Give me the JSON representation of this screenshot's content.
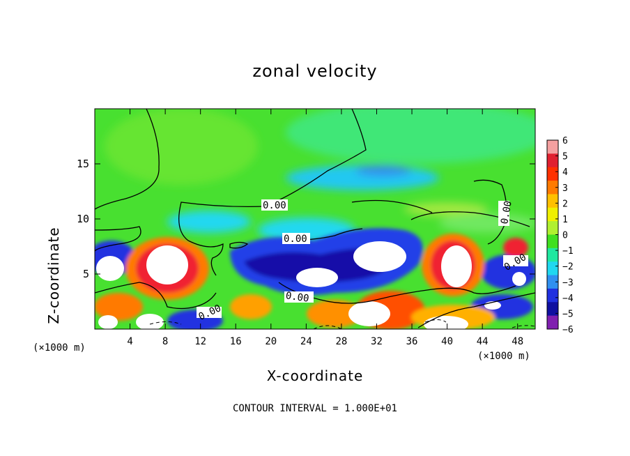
{
  "chart_data": {
    "type": "heatmap",
    "title": "zonal velocity",
    "xlabel": "X-coordinate",
    "ylabel": "Z-coordinate",
    "x_unit": "(×1000 m)",
    "y_unit": "(×1000 m)",
    "x_ticks": [
      "4",
      "8",
      "12",
      "16",
      "20",
      "24",
      "28",
      "32",
      "36",
      "40",
      "44",
      "48"
    ],
    "y_ticks": [
      "5",
      "10",
      "15"
    ],
    "xlim": [
      0,
      50
    ],
    "ylim": [
      0,
      20
    ],
    "colorbar": {
      "ticks": [
        "6",
        "5",
        "4",
        "3",
        "2",
        "1",
        "0",
        "−1",
        "−2",
        "−3",
        "−4",
        "−5",
        "−6"
      ],
      "range": [
        -6,
        6
      ],
      "colors": [
        "#f4a0a0",
        "#e02030",
        "#ff3000",
        "#ff7a00",
        "#ffc000",
        "#f0f000",
        "#b0f030",
        "#40e020",
        "#20e8a0",
        "#20d8f0",
        "#3090f0",
        "#2030e0",
        "#1010a0",
        "#8020b0"
      ]
    },
    "contour_labels": [
      "0.00",
      "0.00",
      "0.00",
      "0.00",
      "0.00",
      "0.00"
    ],
    "note": "CONTOUR INTERVAL = 1.000E+01"
  }
}
